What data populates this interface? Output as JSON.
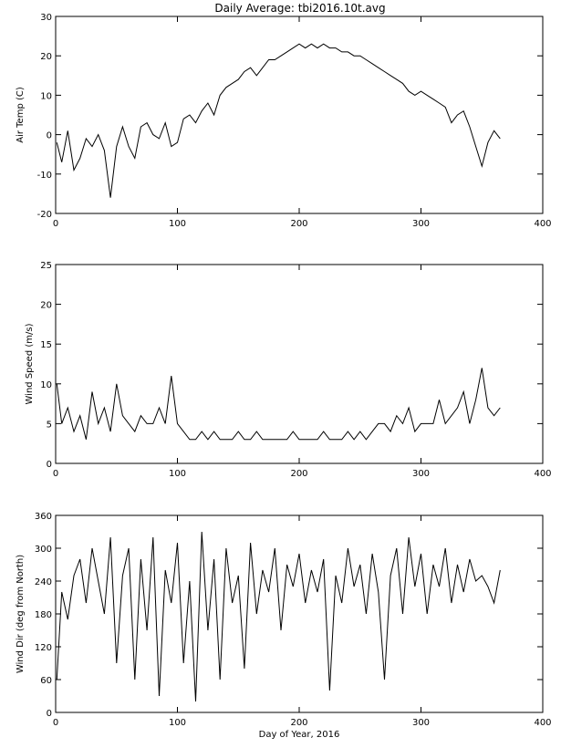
{
  "title": "Daily Average: tbi2016.10t.avg",
  "chart_data": [
    {
      "type": "line",
      "title": "",
      "xlabel": "",
      "ylabel": "Air Temp (C)",
      "xlim": [
        0,
        400
      ],
      "ylim": [
        -20,
        30
      ],
      "xticks": [
        0,
        100,
        200,
        300,
        400
      ],
      "yticks": [
        -20,
        -10,
        0,
        10,
        20,
        30
      ],
      "grid": false,
      "series": [
        {
          "x": [
            1,
            5,
            10,
            15,
            20,
            25,
            30,
            35,
            40,
            45,
            50,
            55,
            60,
            65,
            70,
            75,
            80,
            85,
            90,
            95,
            100,
            105,
            110,
            115,
            120,
            125,
            130,
            135,
            140,
            145,
            150,
            155,
            160,
            165,
            170,
            175,
            180,
            185,
            190,
            195,
            200,
            205,
            210,
            215,
            220,
            225,
            230,
            235,
            240,
            245,
            250,
            255,
            260,
            265,
            270,
            275,
            280,
            285,
            290,
            295,
            300,
            305,
            310,
            315,
            320,
            325,
            330,
            335,
            340,
            345,
            350,
            355,
            360,
            365
          ],
          "y": [
            -2,
            -7,
            1,
            -9,
            -6,
            -1,
            -3,
            0,
            -4,
            -16,
            -3,
            2,
            -3,
            -6,
            2,
            3,
            0,
            -1,
            3,
            -3,
            -2,
            4,
            5,
            3,
            6,
            8,
            5,
            10,
            12,
            13,
            14,
            16,
            17,
            15,
            17,
            19,
            19,
            20,
            21,
            22,
            23,
            22,
            23,
            22,
            23,
            22,
            22,
            21,
            21,
            20,
            20,
            19,
            18,
            17,
            16,
            15,
            14,
            13,
            11,
            10,
            11,
            10,
            9,
            8,
            7,
            3,
            5,
            6,
            2,
            -3,
            -8,
            -2,
            1,
            -1
          ]
        }
      ]
    },
    {
      "type": "line",
      "title": "",
      "xlabel": "",
      "ylabel": "Wind Speed (m/s)",
      "xlim": [
        0,
        400
      ],
      "ylim": [
        0,
        25
      ],
      "xticks": [
        0,
        100,
        200,
        300,
        400
      ],
      "yticks": [
        0,
        5,
        10,
        15,
        20,
        25
      ],
      "grid": false,
      "series": [
        {
          "x": [
            1,
            5,
            10,
            15,
            20,
            25,
            30,
            35,
            40,
            45,
            50,
            55,
            60,
            65,
            70,
            75,
            80,
            85,
            90,
            95,
            100,
            105,
            110,
            115,
            120,
            125,
            130,
            135,
            140,
            145,
            150,
            155,
            160,
            165,
            170,
            175,
            180,
            185,
            190,
            195,
            200,
            205,
            210,
            215,
            220,
            225,
            230,
            235,
            240,
            245,
            250,
            255,
            260,
            265,
            270,
            275,
            280,
            285,
            290,
            295,
            300,
            305,
            310,
            315,
            320,
            325,
            330,
            335,
            340,
            345,
            350,
            355,
            360,
            365
          ],
          "y": [
            10,
            5,
            7,
            4,
            6,
            3,
            9,
            5,
            7,
            4,
            10,
            6,
            5,
            4,
            6,
            5,
            5,
            7,
            5,
            11,
            5,
            4,
            3,
            3,
            4,
            3,
            4,
            3,
            3,
            3,
            4,
            3,
            3,
            4,
            3,
            3,
            3,
            3,
            3,
            4,
            3,
            3,
            3,
            3,
            4,
            3,
            3,
            3,
            4,
            3,
            4,
            3,
            4,
            5,
            5,
            4,
            6,
            5,
            7,
            4,
            5,
            5,
            5,
            8,
            5,
            6,
            7,
            9,
            5,
            8,
            12,
            7,
            6,
            7
          ]
        }
      ]
    },
    {
      "type": "line",
      "title": "",
      "xlabel": "Day of Year, 2016",
      "ylabel": "Wind Dir (deg from North)",
      "xlim": [
        0,
        400
      ],
      "ylim": [
        0,
        360
      ],
      "xticks": [
        0,
        100,
        200,
        300,
        400
      ],
      "yticks": [
        0,
        60,
        120,
        180,
        240,
        300,
        360
      ],
      "grid": false,
      "series": [
        {
          "x": [
            1,
            5,
            10,
            15,
            20,
            25,
            30,
            35,
            40,
            45,
            50,
            55,
            60,
            65,
            70,
            75,
            80,
            85,
            90,
            95,
            100,
            105,
            110,
            115,
            120,
            125,
            130,
            135,
            140,
            145,
            150,
            155,
            160,
            165,
            170,
            175,
            180,
            185,
            190,
            195,
            200,
            205,
            210,
            215,
            220,
            225,
            230,
            235,
            240,
            245,
            250,
            255,
            260,
            265,
            270,
            275,
            280,
            285,
            290,
            295,
            300,
            305,
            310,
            315,
            320,
            325,
            330,
            335,
            340,
            345,
            350,
            355,
            360,
            365
          ],
          "y": [
            60,
            220,
            170,
            250,
            280,
            200,
            300,
            240,
            180,
            320,
            90,
            250,
            300,
            60,
            280,
            150,
            320,
            30,
            260,
            200,
            310,
            90,
            240,
            20,
            330,
            150,
            280,
            60,
            300,
            200,
            250,
            80,
            310,
            180,
            260,
            220,
            300,
            150,
            270,
            230,
            290,
            200,
            260,
            220,
            280,
            40,
            250,
            200,
            300,
            230,
            270,
            180,
            290,
            220,
            60,
            250,
            300,
            180,
            320,
            230,
            290,
            180,
            270,
            230,
            300,
            200,
            270,
            220,
            280,
            240,
            250,
            230,
            200,
            260
          ]
        }
      ]
    }
  ]
}
